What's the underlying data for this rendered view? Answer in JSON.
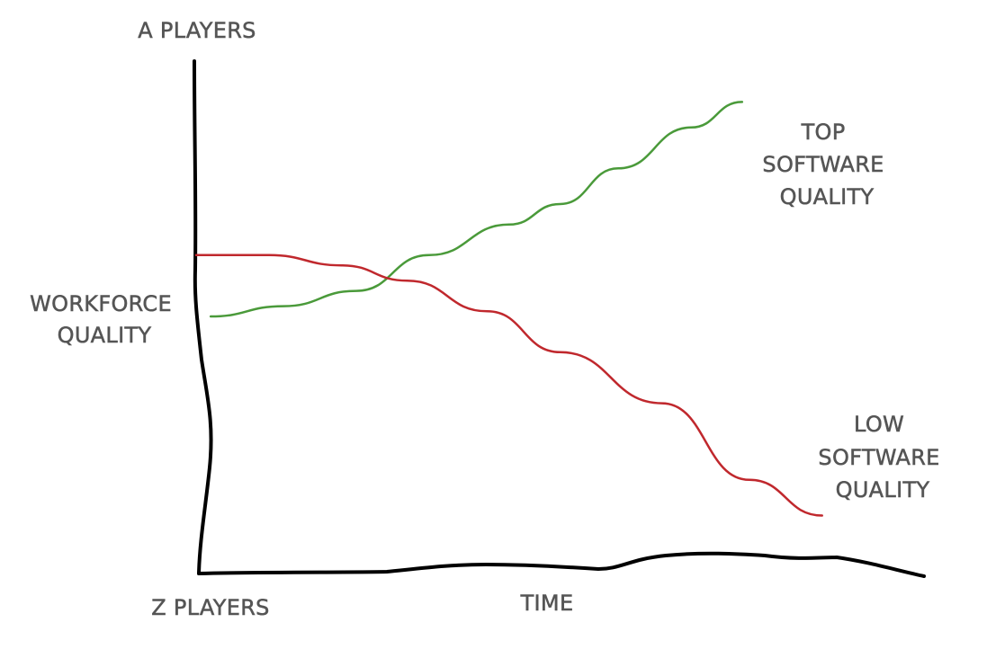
{
  "chart_data": {
    "type": "line",
    "y_axis": {
      "label_lines": [
        "WORKFORCE",
        "QUALITY"
      ],
      "top_label": "A PLAYERS",
      "bottom_label": "Z PLAYERS"
    },
    "x_axis": {
      "label": "TIME"
    },
    "series": [
      {
        "label_lines": [
          "TOP",
          "SOFTWARE",
          "QUALITY"
        ],
        "color": "#4a9a3a",
        "points": [
          [
            0.02,
            0.5
          ],
          [
            0.12,
            0.52
          ],
          [
            0.22,
            0.55
          ],
          [
            0.32,
            0.62
          ],
          [
            0.43,
            0.68
          ],
          [
            0.5,
            0.72
          ],
          [
            0.58,
            0.79
          ],
          [
            0.68,
            0.87
          ],
          [
            0.75,
            0.92
          ]
        ]
      },
      {
        "label_lines": [
          "LOW",
          "SOFTWARE",
          "QUALITY"
        ],
        "color": "#c0282d",
        "points": [
          [
            0.0,
            0.62
          ],
          [
            0.1,
            0.62
          ],
          [
            0.2,
            0.6
          ],
          [
            0.29,
            0.57
          ],
          [
            0.4,
            0.51
          ],
          [
            0.5,
            0.43
          ],
          [
            0.64,
            0.33
          ],
          [
            0.76,
            0.18
          ],
          [
            0.86,
            0.11
          ]
        ]
      }
    ]
  }
}
